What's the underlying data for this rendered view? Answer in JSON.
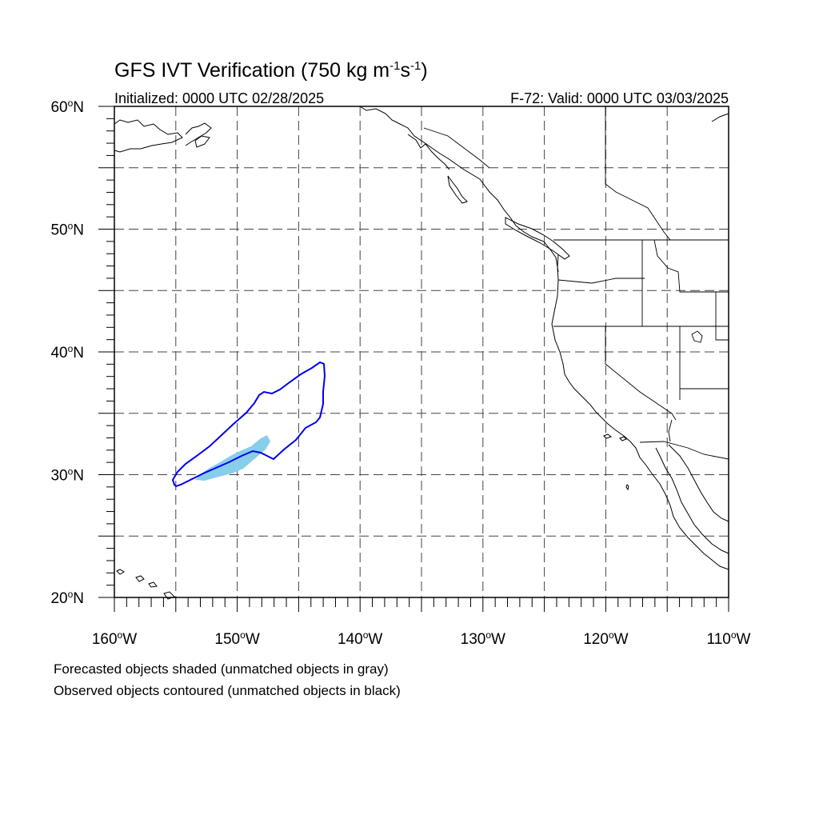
{
  "header": {
    "title_text": "GFS IVT Verification (750 kg m",
    "title_exp1": "-1",
    "title_mid": "s",
    "title_exp2": "-1",
    "title_end": ")",
    "initialized": "Initialized: 0000 UTC 02/28/2025",
    "valid": "F-72: Valid: 0000 UTC 03/03/2025"
  },
  "map": {
    "lon_range": [
      -160,
      -110
    ],
    "lat_range": [
      20,
      60
    ],
    "lat_ticks": [
      {
        "value": 60,
        "label": "60",
        "hemi": "N"
      },
      {
        "value": 50,
        "label": "50",
        "hemi": "N"
      },
      {
        "value": 40,
        "label": "40",
        "hemi": "N"
      },
      {
        "value": 30,
        "label": "30",
        "hemi": "N"
      },
      {
        "value": 20,
        "label": "20",
        "hemi": "N"
      }
    ],
    "lon_ticks": [
      {
        "value": -160,
        "label": "160",
        "hemi": "W"
      },
      {
        "value": -150,
        "label": "150",
        "hemi": "W"
      },
      {
        "value": -140,
        "label": "140",
        "hemi": "W"
      },
      {
        "value": -130,
        "label": "130",
        "hemi": "W"
      },
      {
        "value": -120,
        "label": "120",
        "hemi": "W"
      },
      {
        "value": -110,
        "label": "110",
        "hemi": "W"
      }
    ],
    "grid": "dashed, every 5 degrees",
    "colors": {
      "forecast_fill": "#87ceeb",
      "observed_contour": "#0000ee",
      "coastline": "#000000",
      "grid": "#333333"
    }
  },
  "footer": {
    "line1": "Forecasted objects shaded (unmatched objects in gray)",
    "line2": "Observed objects contoured (unmatched objects in black)"
  }
}
